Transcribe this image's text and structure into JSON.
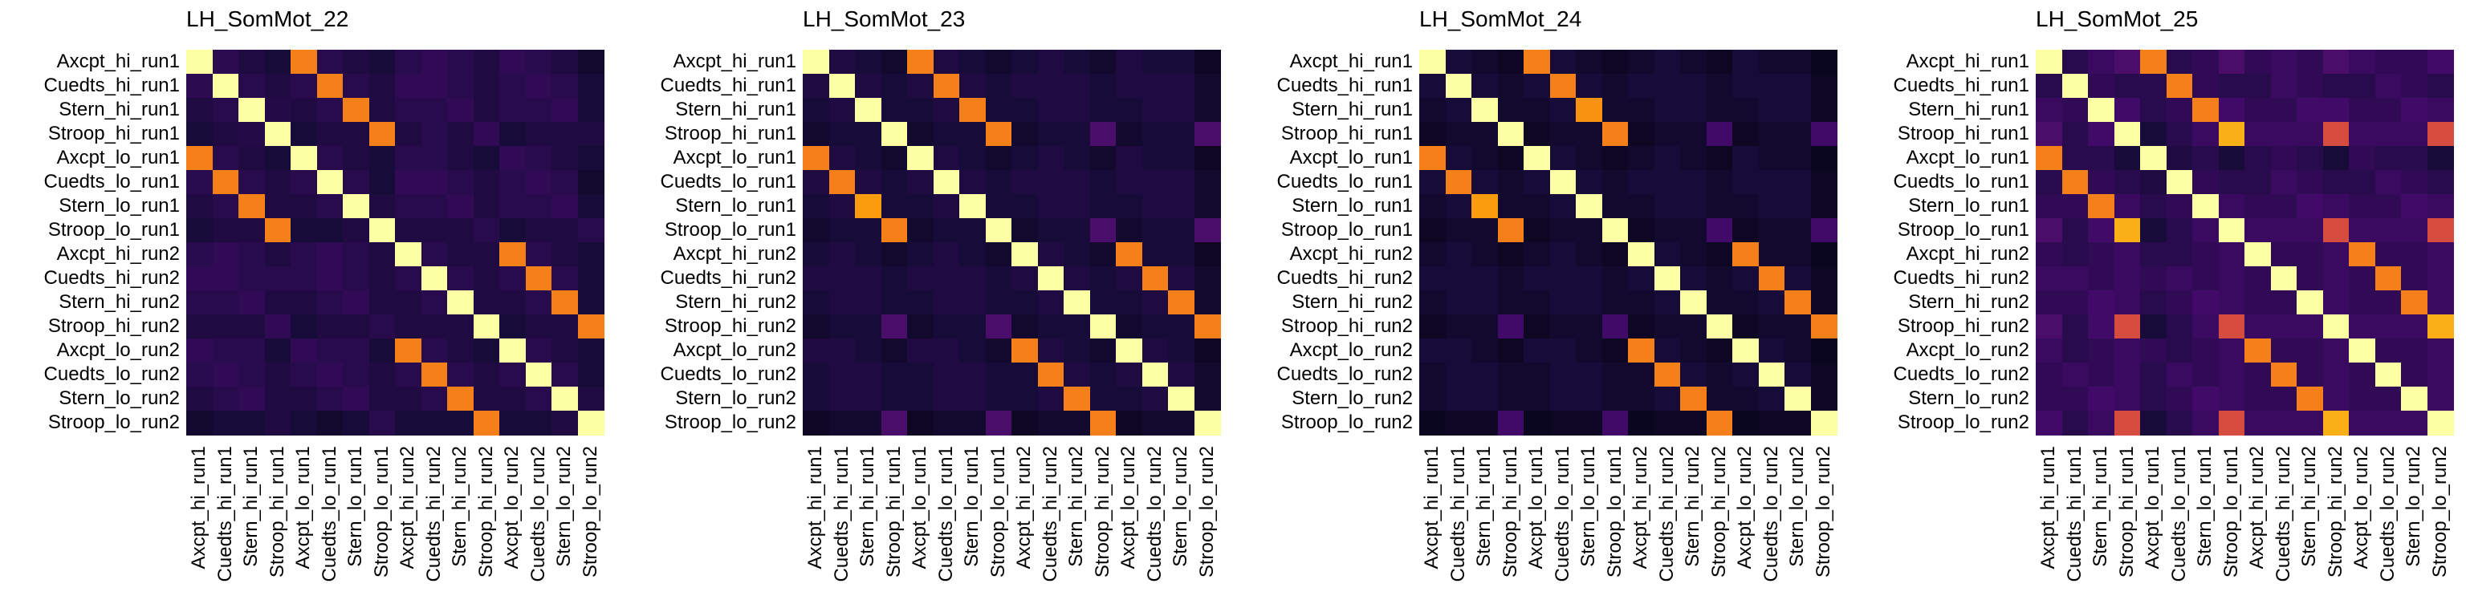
{
  "chart_data": [
    {
      "type": "heatmap",
      "title": "LH_SomMot_22",
      "labels": [
        "Axcpt_hi_run1",
        "Cuedts_hi_run1",
        "Stern_hi_run1",
        "Stroop_hi_run1",
        "Axcpt_lo_run1",
        "Cuedts_lo_run1",
        "Stern_lo_run1",
        "Stroop_lo_run1",
        "Axcpt_hi_run2",
        "Cuedts_hi_run2",
        "Stern_hi_run2",
        "Stroop_hi_run2",
        "Axcpt_lo_run2",
        "Cuedts_lo_run2",
        "Stern_lo_run2",
        "Stroop_lo_run2"
      ],
      "colormap": "inferno",
      "vmin": 0,
      "vmax": 1,
      "values": [
        [
          1.0,
          0.15,
          0.12,
          0.1,
          0.72,
          0.14,
          0.12,
          0.1,
          0.14,
          0.16,
          0.14,
          0.12,
          0.16,
          0.14,
          0.12,
          0.08
        ],
        [
          0.15,
          1.0,
          0.14,
          0.12,
          0.14,
          0.72,
          0.14,
          0.12,
          0.16,
          0.16,
          0.14,
          0.12,
          0.14,
          0.16,
          0.14,
          0.1
        ],
        [
          0.12,
          0.14,
          1.0,
          0.13,
          0.12,
          0.14,
          0.72,
          0.12,
          0.14,
          0.14,
          0.16,
          0.12,
          0.14,
          0.14,
          0.16,
          0.1
        ],
        [
          0.1,
          0.12,
          0.13,
          1.0,
          0.1,
          0.12,
          0.12,
          0.72,
          0.12,
          0.14,
          0.12,
          0.16,
          0.1,
          0.12,
          0.12,
          0.12
        ],
        [
          0.72,
          0.14,
          0.12,
          0.1,
          1.0,
          0.14,
          0.12,
          0.1,
          0.14,
          0.14,
          0.12,
          0.1,
          0.16,
          0.14,
          0.12,
          0.1
        ],
        [
          0.14,
          0.72,
          0.14,
          0.12,
          0.14,
          1.0,
          0.14,
          0.1,
          0.16,
          0.16,
          0.14,
          0.12,
          0.14,
          0.16,
          0.14,
          0.08
        ],
        [
          0.12,
          0.14,
          0.72,
          0.12,
          0.12,
          0.14,
          1.0,
          0.12,
          0.14,
          0.14,
          0.16,
          0.12,
          0.14,
          0.14,
          0.16,
          0.1
        ],
        [
          0.1,
          0.12,
          0.12,
          0.72,
          0.1,
          0.1,
          0.12,
          1.0,
          0.12,
          0.12,
          0.12,
          0.14,
          0.1,
          0.12,
          0.12,
          0.14
        ],
        [
          0.14,
          0.16,
          0.14,
          0.12,
          0.14,
          0.16,
          0.14,
          0.12,
          1.0,
          0.14,
          0.12,
          0.12,
          0.72,
          0.14,
          0.12,
          0.1
        ],
        [
          0.16,
          0.16,
          0.14,
          0.14,
          0.14,
          0.16,
          0.14,
          0.12,
          0.14,
          1.0,
          0.14,
          0.12,
          0.14,
          0.72,
          0.14,
          0.1
        ],
        [
          0.14,
          0.14,
          0.16,
          0.12,
          0.12,
          0.14,
          0.16,
          0.12,
          0.12,
          0.14,
          1.0,
          0.12,
          0.12,
          0.14,
          0.72,
          0.1
        ],
        [
          0.12,
          0.12,
          0.12,
          0.16,
          0.1,
          0.12,
          0.12,
          0.14,
          0.12,
          0.12,
          0.12,
          1.0,
          0.1,
          0.12,
          0.12,
          0.72
        ],
        [
          0.16,
          0.14,
          0.14,
          0.1,
          0.16,
          0.14,
          0.14,
          0.1,
          0.72,
          0.14,
          0.12,
          0.1,
          1.0,
          0.14,
          0.12,
          0.1
        ],
        [
          0.14,
          0.16,
          0.14,
          0.12,
          0.14,
          0.16,
          0.14,
          0.12,
          0.14,
          0.72,
          0.14,
          0.12,
          0.14,
          1.0,
          0.14,
          0.1
        ],
        [
          0.12,
          0.14,
          0.16,
          0.12,
          0.12,
          0.14,
          0.16,
          0.12,
          0.12,
          0.14,
          0.72,
          0.12,
          0.12,
          0.14,
          1.0,
          0.12
        ],
        [
          0.08,
          0.1,
          0.1,
          0.12,
          0.1,
          0.08,
          0.1,
          0.14,
          0.1,
          0.1,
          0.1,
          0.72,
          0.1,
          0.1,
          0.12,
          1.0
        ]
      ]
    },
    {
      "type": "heatmap",
      "title": "LH_SomMot_23",
      "labels": [
        "Axcpt_hi_run1",
        "Cuedts_hi_run1",
        "Stern_hi_run1",
        "Stroop_hi_run1",
        "Axcpt_lo_run1",
        "Cuedts_lo_run1",
        "Stern_lo_run1",
        "Stroop_lo_run1",
        "Axcpt_hi_run2",
        "Cuedts_hi_run2",
        "Stern_hi_run2",
        "Stroop_hi_run2",
        "Axcpt_lo_run2",
        "Cuedts_lo_run2",
        "Stern_lo_run2",
        "Stroop_lo_run2"
      ],
      "colormap": "inferno",
      "vmin": 0,
      "vmax": 1,
      "values": [
        [
          1.0,
          0.12,
          0.1,
          0.08,
          0.72,
          0.12,
          0.1,
          0.08,
          0.1,
          0.12,
          0.1,
          0.08,
          0.12,
          0.1,
          0.1,
          0.06
        ],
        [
          0.12,
          1.0,
          0.12,
          0.1,
          0.12,
          0.72,
          0.12,
          0.1,
          0.12,
          0.12,
          0.12,
          0.1,
          0.12,
          0.12,
          0.12,
          0.08
        ],
        [
          0.1,
          0.12,
          1.0,
          0.1,
          0.1,
          0.12,
          0.72,
          0.1,
          0.1,
          0.12,
          0.12,
          0.1,
          0.1,
          0.12,
          0.12,
          0.08
        ],
        [
          0.08,
          0.1,
          0.1,
          1.0,
          0.08,
          0.1,
          0.1,
          0.72,
          0.08,
          0.1,
          0.1,
          0.22,
          0.08,
          0.1,
          0.1,
          0.22
        ],
        [
          0.72,
          0.12,
          0.1,
          0.08,
          1.0,
          0.12,
          0.1,
          0.08,
          0.1,
          0.12,
          0.1,
          0.08,
          0.12,
          0.1,
          0.1,
          0.06
        ],
        [
          0.12,
          0.72,
          0.12,
          0.1,
          0.12,
          1.0,
          0.12,
          0.1,
          0.12,
          0.12,
          0.12,
          0.1,
          0.12,
          0.12,
          0.12,
          0.08
        ],
        [
          0.1,
          0.12,
          0.78,
          0.1,
          0.1,
          0.12,
          1.0,
          0.1,
          0.1,
          0.12,
          0.12,
          0.1,
          0.1,
          0.12,
          0.12,
          0.08
        ],
        [
          0.08,
          0.1,
          0.1,
          0.72,
          0.08,
          0.1,
          0.1,
          1.0,
          0.08,
          0.1,
          0.1,
          0.22,
          0.08,
          0.1,
          0.1,
          0.22
        ],
        [
          0.1,
          0.12,
          0.1,
          0.08,
          0.1,
          0.12,
          0.1,
          0.08,
          1.0,
          0.12,
          0.1,
          0.08,
          0.72,
          0.1,
          0.1,
          0.06
        ],
        [
          0.12,
          0.12,
          0.12,
          0.1,
          0.12,
          0.12,
          0.12,
          0.1,
          0.12,
          1.0,
          0.12,
          0.1,
          0.12,
          0.72,
          0.12,
          0.08
        ],
        [
          0.1,
          0.12,
          0.12,
          0.1,
          0.1,
          0.12,
          0.12,
          0.1,
          0.1,
          0.12,
          1.0,
          0.1,
          0.1,
          0.12,
          0.72,
          0.08
        ],
        [
          0.08,
          0.1,
          0.1,
          0.22,
          0.08,
          0.1,
          0.1,
          0.22,
          0.08,
          0.1,
          0.1,
          1.0,
          0.08,
          0.1,
          0.1,
          0.72
        ],
        [
          0.12,
          0.12,
          0.1,
          0.08,
          0.12,
          0.12,
          0.1,
          0.08,
          0.72,
          0.12,
          0.1,
          0.08,
          1.0,
          0.12,
          0.1,
          0.06
        ],
        [
          0.1,
          0.12,
          0.12,
          0.1,
          0.1,
          0.12,
          0.12,
          0.1,
          0.1,
          0.72,
          0.12,
          0.1,
          0.12,
          1.0,
          0.12,
          0.08
        ],
        [
          0.1,
          0.12,
          0.12,
          0.1,
          0.1,
          0.12,
          0.12,
          0.1,
          0.1,
          0.12,
          0.72,
          0.1,
          0.1,
          0.12,
          1.0,
          0.08
        ],
        [
          0.06,
          0.08,
          0.08,
          0.22,
          0.06,
          0.08,
          0.08,
          0.22,
          0.06,
          0.08,
          0.08,
          0.72,
          0.06,
          0.08,
          0.08,
          1.0
        ]
      ]
    },
    {
      "type": "heatmap",
      "title": "LH_SomMot_24",
      "labels": [
        "Axcpt_hi_run1",
        "Cuedts_hi_run1",
        "Stern_hi_run1",
        "Stroop_hi_run1",
        "Axcpt_lo_run1",
        "Cuedts_lo_run1",
        "Stern_lo_run1",
        "Stroop_lo_run1",
        "Axcpt_hi_run2",
        "Cuedts_hi_run2",
        "Stern_hi_run2",
        "Stroop_hi_run2",
        "Axcpt_lo_run2",
        "Cuedts_lo_run2",
        "Stern_lo_run2",
        "Stroop_lo_run2"
      ],
      "colormap": "inferno",
      "vmin": 0,
      "vmax": 1,
      "values": [
        [
          1.0,
          0.1,
          0.08,
          0.06,
          0.72,
          0.1,
          0.08,
          0.06,
          0.08,
          0.1,
          0.08,
          0.06,
          0.1,
          0.08,
          0.08,
          0.05
        ],
        [
          0.1,
          1.0,
          0.1,
          0.08,
          0.1,
          0.72,
          0.1,
          0.08,
          0.1,
          0.1,
          0.1,
          0.08,
          0.1,
          0.1,
          0.1,
          0.06
        ],
        [
          0.08,
          0.1,
          1.0,
          0.08,
          0.08,
          0.1,
          0.76,
          0.08,
          0.08,
          0.1,
          0.1,
          0.08,
          0.08,
          0.1,
          0.1,
          0.06
        ],
        [
          0.06,
          0.08,
          0.08,
          1.0,
          0.06,
          0.08,
          0.08,
          0.72,
          0.06,
          0.08,
          0.08,
          0.2,
          0.06,
          0.08,
          0.08,
          0.2
        ],
        [
          0.72,
          0.1,
          0.08,
          0.06,
          1.0,
          0.1,
          0.08,
          0.06,
          0.08,
          0.1,
          0.08,
          0.06,
          0.1,
          0.08,
          0.08,
          0.05
        ],
        [
          0.1,
          0.72,
          0.1,
          0.08,
          0.1,
          1.0,
          0.1,
          0.08,
          0.1,
          0.1,
          0.1,
          0.08,
          0.1,
          0.1,
          0.1,
          0.06
        ],
        [
          0.08,
          0.1,
          0.78,
          0.08,
          0.08,
          0.1,
          1.0,
          0.08,
          0.08,
          0.1,
          0.1,
          0.08,
          0.08,
          0.1,
          0.1,
          0.06
        ],
        [
          0.06,
          0.08,
          0.08,
          0.72,
          0.06,
          0.08,
          0.08,
          1.0,
          0.06,
          0.08,
          0.08,
          0.2,
          0.06,
          0.08,
          0.08,
          0.2
        ],
        [
          0.08,
          0.1,
          0.08,
          0.06,
          0.08,
          0.1,
          0.08,
          0.06,
          1.0,
          0.1,
          0.08,
          0.06,
          0.72,
          0.08,
          0.08,
          0.05
        ],
        [
          0.1,
          0.1,
          0.1,
          0.08,
          0.1,
          0.1,
          0.1,
          0.08,
          0.1,
          1.0,
          0.1,
          0.08,
          0.1,
          0.72,
          0.1,
          0.06
        ],
        [
          0.08,
          0.1,
          0.1,
          0.08,
          0.08,
          0.1,
          0.1,
          0.08,
          0.08,
          0.1,
          1.0,
          0.08,
          0.08,
          0.1,
          0.72,
          0.06
        ],
        [
          0.06,
          0.08,
          0.08,
          0.2,
          0.06,
          0.08,
          0.08,
          0.2,
          0.06,
          0.08,
          0.08,
          1.0,
          0.06,
          0.08,
          0.08,
          0.72
        ],
        [
          0.1,
          0.1,
          0.08,
          0.06,
          0.1,
          0.1,
          0.08,
          0.06,
          0.72,
          0.1,
          0.08,
          0.06,
          1.0,
          0.1,
          0.08,
          0.05
        ],
        [
          0.08,
          0.1,
          0.1,
          0.08,
          0.08,
          0.1,
          0.1,
          0.08,
          0.08,
          0.72,
          0.1,
          0.08,
          0.1,
          1.0,
          0.1,
          0.06
        ],
        [
          0.08,
          0.1,
          0.1,
          0.08,
          0.08,
          0.1,
          0.1,
          0.08,
          0.08,
          0.1,
          0.72,
          0.08,
          0.08,
          0.1,
          1.0,
          0.06
        ],
        [
          0.05,
          0.06,
          0.06,
          0.2,
          0.05,
          0.06,
          0.06,
          0.2,
          0.05,
          0.06,
          0.06,
          0.72,
          0.05,
          0.06,
          0.06,
          1.0
        ]
      ]
    },
    {
      "type": "heatmap",
      "title": "LH_SomMot_25",
      "labels": [
        "Axcpt_hi_run1",
        "Cuedts_hi_run1",
        "Stern_hi_run1",
        "Stroop_hi_run1",
        "Axcpt_lo_run1",
        "Cuedts_lo_run1",
        "Stern_lo_run1",
        "Stroop_lo_run1",
        "Axcpt_hi_run2",
        "Cuedts_hi_run2",
        "Stern_hi_run2",
        "Stroop_hi_run2",
        "Axcpt_lo_run2",
        "Cuedts_lo_run2",
        "Stern_lo_run2",
        "Stroop_lo_run2"
      ],
      "colormap": "inferno",
      "vmin": 0,
      "vmax": 1,
      "values": [
        [
          1.0,
          0.14,
          0.18,
          0.22,
          0.72,
          0.14,
          0.16,
          0.22,
          0.16,
          0.18,
          0.16,
          0.22,
          0.18,
          0.16,
          0.16,
          0.2
        ],
        [
          0.14,
          1.0,
          0.16,
          0.14,
          0.14,
          0.72,
          0.16,
          0.14,
          0.14,
          0.18,
          0.16,
          0.14,
          0.14,
          0.18,
          0.16,
          0.14
        ],
        [
          0.18,
          0.16,
          1.0,
          0.2,
          0.14,
          0.16,
          0.72,
          0.2,
          0.16,
          0.16,
          0.2,
          0.2,
          0.16,
          0.16,
          0.2,
          0.18
        ],
        [
          0.22,
          0.14,
          0.2,
          1.0,
          0.1,
          0.14,
          0.18,
          0.82,
          0.18,
          0.18,
          0.18,
          0.58,
          0.18,
          0.18,
          0.18,
          0.58
        ],
        [
          0.72,
          0.14,
          0.14,
          0.1,
          1.0,
          0.12,
          0.14,
          0.1,
          0.14,
          0.16,
          0.14,
          0.1,
          0.16,
          0.14,
          0.14,
          0.1
        ],
        [
          0.14,
          0.72,
          0.16,
          0.14,
          0.12,
          1.0,
          0.16,
          0.14,
          0.14,
          0.18,
          0.16,
          0.14,
          0.14,
          0.18,
          0.16,
          0.14
        ],
        [
          0.16,
          0.16,
          0.72,
          0.18,
          0.14,
          0.16,
          1.0,
          0.18,
          0.16,
          0.16,
          0.2,
          0.18,
          0.16,
          0.16,
          0.2,
          0.18
        ],
        [
          0.22,
          0.14,
          0.2,
          0.82,
          0.1,
          0.14,
          0.18,
          1.0,
          0.18,
          0.18,
          0.18,
          0.58,
          0.18,
          0.18,
          0.18,
          0.58
        ],
        [
          0.16,
          0.14,
          0.16,
          0.18,
          0.14,
          0.14,
          0.16,
          0.18,
          1.0,
          0.16,
          0.16,
          0.18,
          0.72,
          0.16,
          0.16,
          0.18
        ],
        [
          0.18,
          0.18,
          0.16,
          0.18,
          0.16,
          0.18,
          0.16,
          0.18,
          0.16,
          1.0,
          0.16,
          0.18,
          0.16,
          0.72,
          0.16,
          0.18
        ],
        [
          0.16,
          0.16,
          0.2,
          0.18,
          0.14,
          0.16,
          0.2,
          0.18,
          0.16,
          0.16,
          1.0,
          0.18,
          0.16,
          0.16,
          0.72,
          0.18
        ],
        [
          0.22,
          0.14,
          0.2,
          0.58,
          0.1,
          0.14,
          0.18,
          0.58,
          0.18,
          0.18,
          0.18,
          1.0,
          0.18,
          0.18,
          0.18,
          0.82
        ],
        [
          0.18,
          0.14,
          0.16,
          0.18,
          0.16,
          0.14,
          0.16,
          0.18,
          0.72,
          0.16,
          0.16,
          0.18,
          1.0,
          0.16,
          0.16,
          0.18
        ],
        [
          0.16,
          0.18,
          0.16,
          0.18,
          0.14,
          0.18,
          0.16,
          0.18,
          0.16,
          0.72,
          0.16,
          0.18,
          0.16,
          1.0,
          0.16,
          0.18
        ],
        [
          0.16,
          0.16,
          0.2,
          0.18,
          0.14,
          0.16,
          0.2,
          0.18,
          0.16,
          0.16,
          0.72,
          0.18,
          0.16,
          0.16,
          1.0,
          0.18
        ],
        [
          0.2,
          0.14,
          0.18,
          0.58,
          0.1,
          0.14,
          0.18,
          0.58,
          0.18,
          0.18,
          0.18,
          0.82,
          0.18,
          0.18,
          0.18,
          1.0
        ]
      ]
    }
  ]
}
